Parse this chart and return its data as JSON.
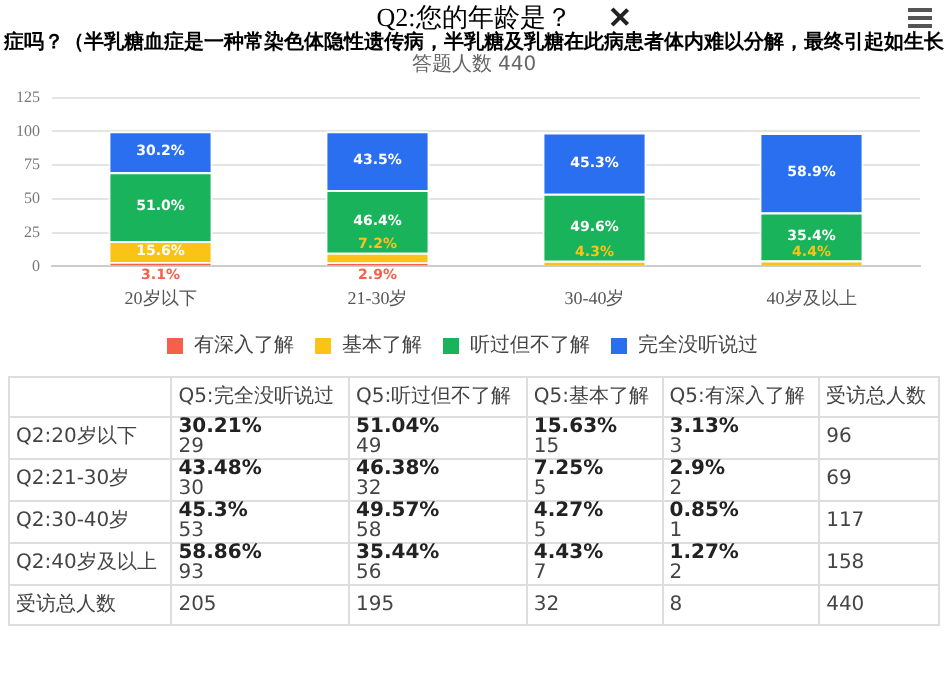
{
  "chart_data": [
    {
      "type": "bar",
      "title": "Q2:您的年龄是？",
      "subtitle": "症吗？（半乳糖血症是一种常染色体隐性遗传病，半乳糖及乳糖在此病患者体内难以分解，最终引起如生长",
      "annotations": [
        "答题人数 440"
      ],
      "categories": [
        "20岁以下",
        "21-30岁",
        "30-40岁",
        "40岁及以上"
      ],
      "stacked": true,
      "series": [
        {
          "name": "有深入了解",
          "color": "#f4604a",
          "values": [
            3.13,
            2.9,
            null,
            null
          ],
          "value_labels": [
            "3.1%",
            "2.9%",
            null,
            null
          ]
        },
        {
          "name": "基本了解",
          "color": "#fbc315",
          "values": [
            15.63,
            7.25,
            4.27,
            4.43
          ],
          "value_labels": [
            "15.6%",
            "7.2%",
            "4.3%",
            "4.4%"
          ]
        },
        {
          "name": "听过但不了解",
          "color": "#18b35a",
          "values": [
            51.04,
            46.38,
            49.57,
            35.44
          ],
          "value_labels": [
            "51.0%",
            "46.4%",
            "49.6%",
            "35.4%"
          ]
        },
        {
          "name": "完全没听说过",
          "color": "#2a6ff0",
          "values": [
            30.21,
            43.48,
            45.3,
            58.86
          ],
          "value_labels": [
            "30.2%",
            "43.5%",
            "45.3%",
            "58.9%"
          ]
        }
      ],
      "ylim": [
        0,
        125
      ],
      "yticks": [
        0,
        25,
        50,
        75,
        100,
        125
      ],
      "grid": "y",
      "legend": "bottom"
    },
    {
      "type": "other",
      "categories": [
        "Q5:完全没听说过",
        "Q5:听过但不了解",
        "Q5:基本了解",
        "Q5:有深入了解",
        "受访总人数"
      ],
      "y_categories": [
        "Q2:20岁以下",
        "Q2:21-30岁",
        "Q2:30-40岁",
        "Q2:40岁及以上",
        "受访总人数"
      ],
      "cell_labels": [
        [
          "30.21%\n29",
          "51.04%\n49",
          "15.63%\n15",
          "3.13%\n3",
          "96"
        ],
        [
          "43.48%\n30",
          "46.38%\n32",
          "7.25%\n5",
          "2.9%\n2",
          "69"
        ],
        [
          "45.3%\n53",
          "49.57%\n58",
          "4.27%\n5",
          "0.85%\n1",
          "117"
        ],
        [
          "58.86%\n93",
          "35.44%\n56",
          "4.43%\n7",
          "1.27%\n2",
          "158"
        ],
        [
          "205",
          "195",
          "32",
          "8",
          "440"
        ]
      ]
    }
  ]
}
